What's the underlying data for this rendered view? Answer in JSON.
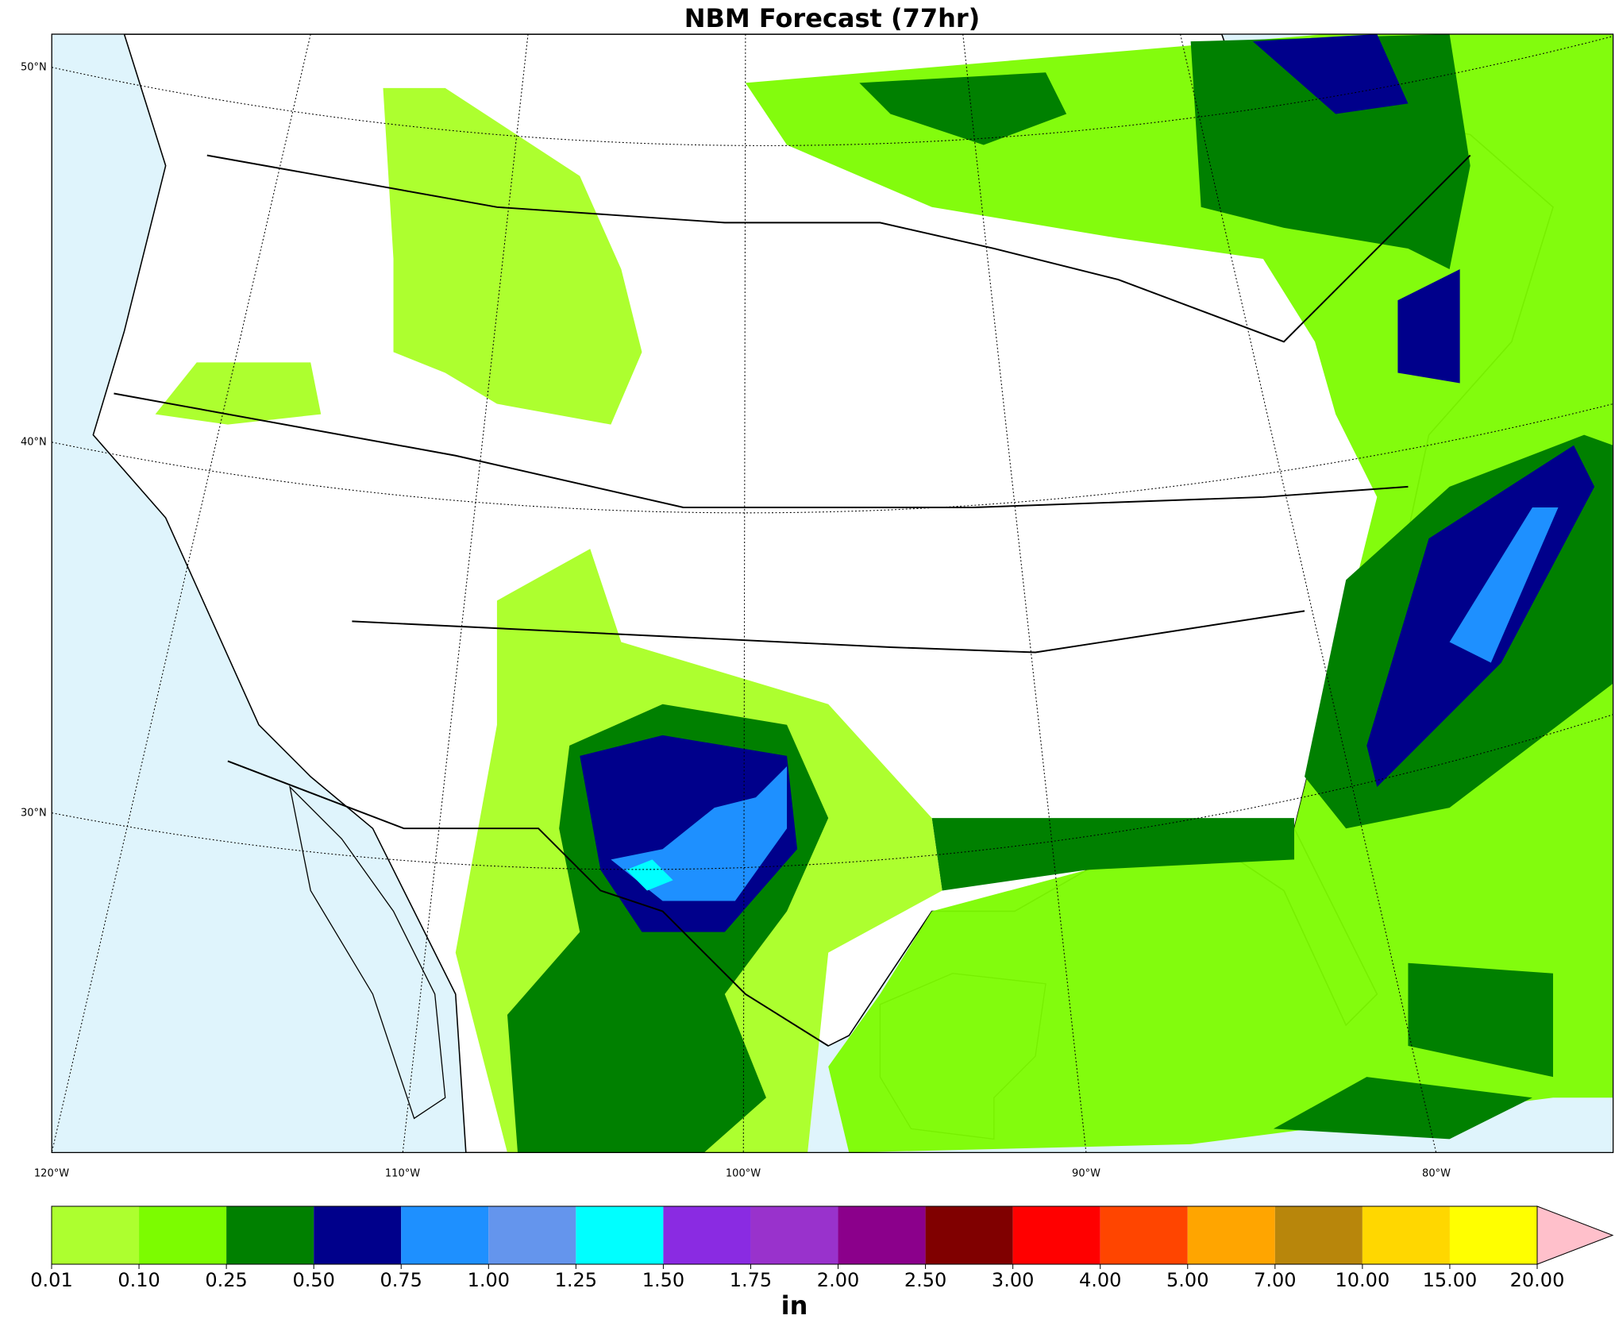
{
  "title": "NBM Forecast (77hr)",
  "map": {
    "lat_labels": [
      "50°N",
      "40°N",
      "30°N"
    ],
    "lon_labels": [
      "120°W",
      "110°W",
      "100°W",
      "90°W",
      "80°W"
    ]
  },
  "colorbar": {
    "ticks": [
      {
        "value": 0.01,
        "label": "0.01"
      },
      {
        "value": 0.1,
        "label": "0.10"
      },
      {
        "value": 0.25,
        "label": "0.25"
      },
      {
        "value": 0.5,
        "label": "0.50"
      },
      {
        "value": 0.75,
        "label": "0.75"
      },
      {
        "value": 1,
        "label": "1.00"
      },
      {
        "value": 1.25,
        "label": "1.25"
      },
      {
        "value": 1.5,
        "label": "1.50"
      },
      {
        "value": 1.75,
        "label": "1.75"
      },
      {
        "value": 2,
        "label": "2.00"
      },
      {
        "value": 2.5,
        "label": "2.50"
      },
      {
        "value": 3,
        "label": "3.00"
      },
      {
        "value": 4,
        "label": "4.00"
      },
      {
        "value": 5,
        "label": "5.00"
      },
      {
        "value": 7,
        "label": "7.00"
      },
      {
        "value": 10,
        "label": "10.00"
      },
      {
        "value": 15,
        "label": "15.00"
      },
      {
        "value": 20,
        "label": "20.00"
      }
    ],
    "colors": [
      "#adff2f",
      "#7cfc00",
      "#008000",
      "#00008b",
      "#1e90ff",
      "#6495ed",
      "#00ffff",
      "#8a2be2",
      "#9932cc",
      "#8b008b",
      "#800000",
      "#ff0000",
      "#ff4500",
      "#ffa500",
      "#b8860b",
      "#ffd700",
      "#ffff00"
    ],
    "extend_color": "#ffc0cb",
    "label": "in"
  }
}
